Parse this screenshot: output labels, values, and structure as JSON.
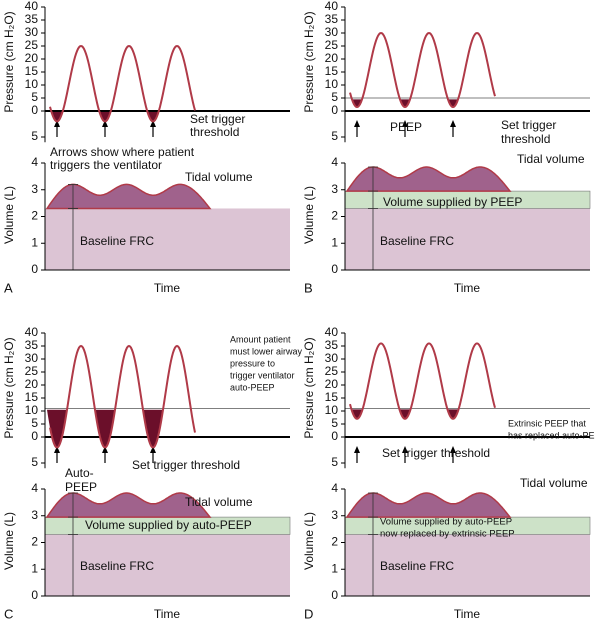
{
  "panels": [
    {
      "letter": "A",
      "pressure_axis_label": "Pressure (cm H₂O)",
      "volume_axis_label": "Volume (L)",
      "time_label": "Time",
      "pressure_ticks": [
        0,
        5,
        10,
        15,
        20,
        25,
        30,
        35,
        40
      ],
      "pressure_below_tick": 5,
      "volume_ticks": [
        0,
        1,
        2,
        3,
        4
      ],
      "notes": [
        "Arrows show where patient",
        "triggers the ventilator",
        "Set trigger",
        "threshold",
        "Tidal volume",
        "Baseline FRC"
      ]
    },
    {
      "letter": "B",
      "pressure_axis_label": "Pressure (cm H₂O)",
      "volume_axis_label": "Volume (L)",
      "time_label": "Time",
      "pressure_ticks": [
        0,
        5,
        10,
        15,
        20,
        25,
        30,
        35,
        40
      ],
      "pressure_below_tick": 5,
      "volume_ticks": [
        0,
        1,
        2,
        3,
        4
      ],
      "notes": [
        "PEEP",
        "Set trigger",
        "threshold",
        "Tidal volume",
        "Volume supplied by PEEP",
        "Baseline FRC"
      ]
    },
    {
      "letter": "C",
      "pressure_axis_label": "Pressure (cm H₂O)",
      "volume_axis_label": "Volume (L)",
      "time_label": "Time",
      "pressure_ticks": [
        0,
        5,
        10,
        15,
        20,
        25,
        30,
        35,
        40
      ],
      "pressure_below_tick": 5,
      "volume_ticks": [
        0,
        1,
        2,
        3,
        4
      ],
      "notes": [
        "Amount patient",
        "must lower airway",
        "pressure to",
        "trigger ventilator",
        "auto-PEEP",
        "Auto-",
        "PEEP",
        "Set trigger threshold",
        "Tidal volume",
        "Volume supplied by auto-PEEP",
        "Baseline FRC"
      ]
    },
    {
      "letter": "D",
      "pressure_axis_label": "Pressure (cm H₂O)",
      "volume_axis_label": "Volume (L)",
      "time_label": "Time",
      "pressure_ticks": [
        0,
        5,
        10,
        15,
        20,
        25,
        30,
        35,
        40
      ],
      "pressure_below_tick": 5,
      "volume_ticks": [
        0,
        1,
        2,
        3,
        4
      ],
      "notes": [
        "Extrinsic PEEP that",
        "has replaced auto-PEEP",
        "Set trigger threshold",
        "Tidal volume",
        "Volume supplied by auto-PEEP",
        "now replaced by extrinsic PEEP",
        "Baseline FRC"
      ]
    }
  ]
}
